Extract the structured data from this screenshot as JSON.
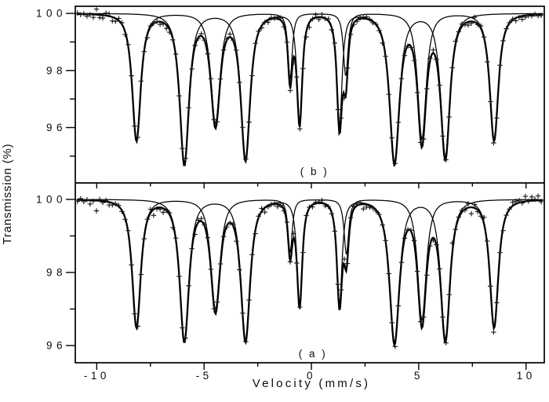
{
  "figure": {
    "background": "#ffffff",
    "foreground": "#000000",
    "marker_color": "#1a1a1a"
  },
  "chart_data": {
    "type": "line",
    "description": "Mossbauer transmission spectra: two stacked panels, experimental points (+), two sextet sub-spectrum curves and thick total fit curve per panel",
    "xlabel": "Velocity (mm/s)",
    "ylabel": "Transmission (%)",
    "x_range": [
      -11.0,
      10.85
    ],
    "x_major_ticks": [
      -10,
      -5,
      0,
      5,
      10
    ],
    "x_minor_ticks": [
      -7.5,
      -2.5,
      2.5,
      7.5
    ],
    "baseline_pct": 100,
    "grid": "off",
    "legend": "none",
    "panels": [
      {
        "id": "b",
        "label": "( b )",
        "position": "top",
        "y_range": [
          94.06,
          100.25
        ],
        "y_major_ticks": [
          100,
          98,
          96
        ],
        "y_minor_ticks": [
          99,
          97,
          95
        ],
        "marker": "+",
        "marker_noise_pct": 0.075,
        "marker_step_mms": 0.148,
        "noise_seed": 20,
        "components": [
          {
            "name": "sextet-1",
            "lines": [
              {
                "v": -8.15,
                "depth": 4.45,
                "hwhm": 0.28
              },
              {
                "v": -4.47,
                "depth": 3.85,
                "hwhm": 0.3
              },
              {
                "v": -0.99,
                "depth": 2.3,
                "hwhm": 0.14
              },
              {
                "v": 1.6,
                "depth": 2.2,
                "hwhm": 0.15
              },
              {
                "v": 5.15,
                "depth": 4.4,
                "hwhm": 0.28
              },
              {
                "v": 8.51,
                "depth": 4.45,
                "hwhm": 0.28
              }
            ]
          },
          {
            "name": "sextet-2",
            "lines": [
              {
                "v": -5.92,
                "depth": 5.25,
                "hwhm": 0.3
              },
              {
                "v": -3.07,
                "depth": 5.1,
                "hwhm": 0.3
              },
              {
                "v": -0.55,
                "depth": 3.85,
                "hwhm": 0.17
              },
              {
                "v": 1.31,
                "depth": 3.9,
                "hwhm": 0.17
              },
              {
                "v": 3.87,
                "depth": 5.2,
                "hwhm": 0.32
              },
              {
                "v": 6.24,
                "depth": 5.0,
                "hwhm": 0.3
              }
            ]
          }
        ]
      },
      {
        "id": "a",
        "label": "( a )",
        "position": "bottom",
        "y_range": [
          95.53,
          100.45
        ],
        "y_major_ticks": [
          100,
          98,
          96
        ],
        "y_minor_ticks": [
          99,
          97
        ],
        "marker": "+",
        "marker_noise_pct": 0.06,
        "marker_step_mms": 0.148,
        "noise_seed": 77,
        "components": [
          {
            "name": "sextet-1",
            "lines": [
              {
                "v": -8.15,
                "depth": 3.5,
                "hwhm": 0.28
              },
              {
                "v": -4.47,
                "depth": 3.0,
                "hwhm": 0.3
              },
              {
                "v": -0.99,
                "depth": 1.45,
                "hwhm": 0.14
              },
              {
                "v": 1.63,
                "depth": 1.5,
                "hwhm": 0.15
              },
              {
                "v": 5.15,
                "depth": 3.3,
                "hwhm": 0.28
              },
              {
                "v": 8.51,
                "depth": 3.5,
                "hwhm": 0.28
              }
            ]
          },
          {
            "name": "sextet-2",
            "lines": [
              {
                "v": -5.92,
                "depth": 3.85,
                "hwhm": 0.3
              },
              {
                "v": -3.07,
                "depth": 3.85,
                "hwhm": 0.3
              },
              {
                "v": -0.55,
                "depth": 2.9,
                "hwhm": 0.17
              },
              {
                "v": 1.31,
                "depth": 2.85,
                "hwhm": 0.17
              },
              {
                "v": 3.87,
                "depth": 3.9,
                "hwhm": 0.32
              },
              {
                "v": 6.24,
                "depth": 3.8,
                "hwhm": 0.3
              }
            ]
          }
        ]
      }
    ]
  }
}
